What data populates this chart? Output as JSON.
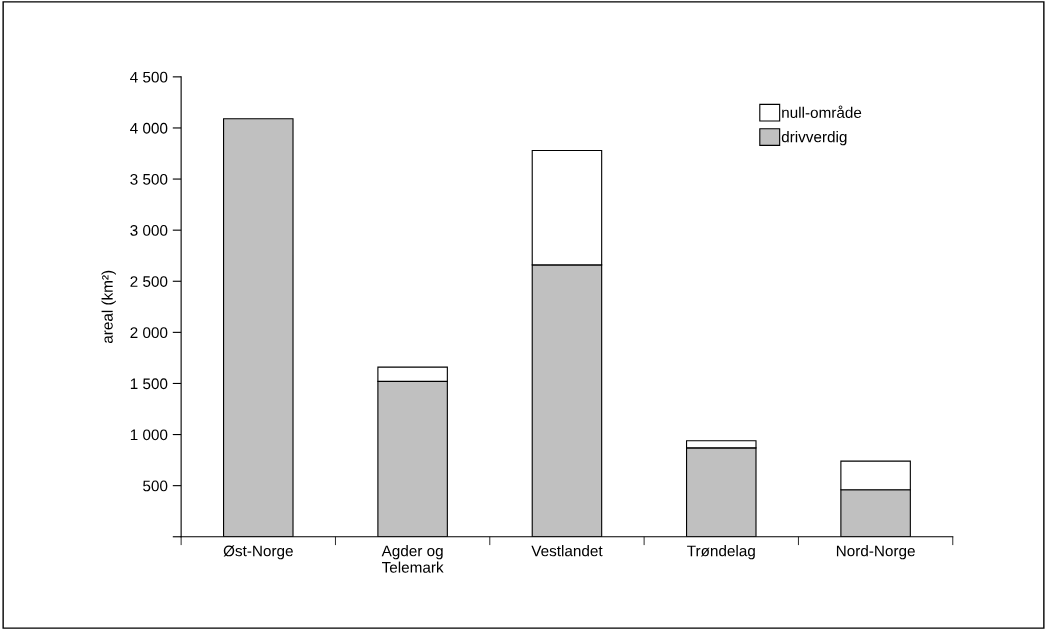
{
  "chart_data": {
    "type": "bar",
    "stacked": true,
    "ylabel": "areal (km²)",
    "categories": [
      "Øst-Norge",
      "Agder og\nTelemark",
      "Vestlandet",
      "Trøndelag",
      "Nord-Norge"
    ],
    "series": [
      {
        "name": "drivverdig",
        "color": "#c0c0c0",
        "values": [
          4090,
          1520,
          2660,
          870,
          460
        ]
      },
      {
        "name": "null-område",
        "color": "#ffffff",
        "values": [
          null,
          140,
          1120,
          70,
          280
        ]
      }
    ],
    "ylim": [
      0,
      4500
    ],
    "yticks": [
      {
        "value": 0,
        "label": null
      },
      {
        "value": 500,
        "label": "500"
      },
      {
        "value": 1000,
        "label": "1 000"
      },
      {
        "value": 1500,
        "label": "1 500"
      },
      {
        "value": 2000,
        "label": "2 000"
      },
      {
        "value": 2500,
        "label": "2 500"
      },
      {
        "value": 3000,
        "label": "3 000"
      },
      {
        "value": 3500,
        "label": "3 500"
      },
      {
        "value": 4000,
        "label": "4 000"
      },
      {
        "value": 4500,
        "label": "4 500"
      }
    ],
    "grid": false,
    "legend": "top right"
  }
}
